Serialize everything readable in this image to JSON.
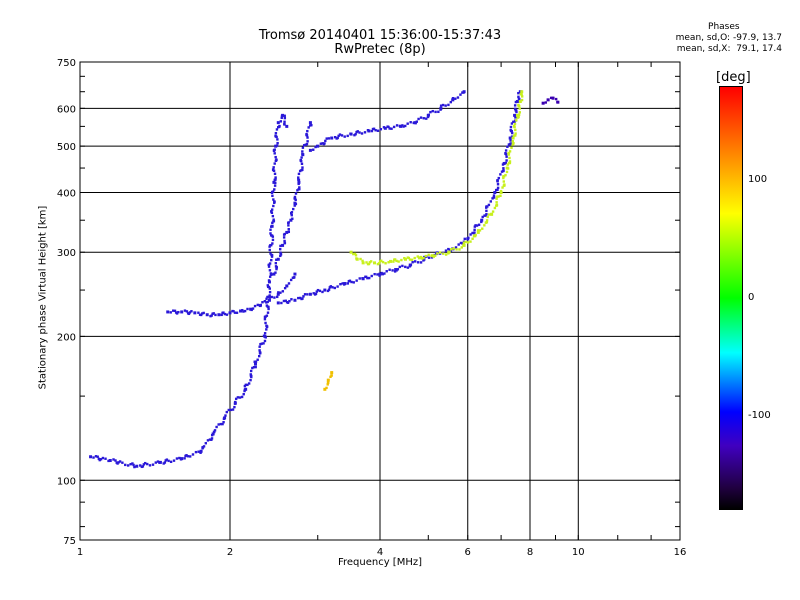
{
  "title_line1": "Tromsø 20140401 15:36:00-15:37:43",
  "title_line2": "RwPretec (8p)",
  "phases": {
    "heading": "Phases",
    "line_o": "mean, sd,O: -97.9, 13.7",
    "line_x": "mean, sd,X:  79.1, 17.4"
  },
  "colorbar": {
    "unit": "[deg]",
    "ticks": [
      "100",
      "0",
      "-100"
    ],
    "tick_values": [
      100,
      0,
      -100
    ],
    "range": [
      -180,
      180
    ]
  },
  "colors": {
    "o_trace": "#2a18d8",
    "x_trace": "#c8f01e",
    "grid": "#000000"
  },
  "chart_data": {
    "type": "scatter",
    "xlabel": "Frequency [MHz]",
    "ylabel": "Stationary phase Virtual Height [km]",
    "xscale": "log",
    "yscale": "log",
    "xlim": [
      1,
      16
    ],
    "ylim": [
      75,
      750
    ],
    "xticks": [
      1,
      2,
      4,
      6,
      8,
      10,
      16
    ],
    "xtick_labels": [
      "1",
      "2",
      "4",
      "6",
      "8",
      "10",
      "16"
    ],
    "yticks": [
      75,
      100,
      200,
      300,
      400,
      500,
      600,
      750
    ],
    "ytick_labels": [
      "75",
      "100",
      "200",
      "300",
      "400",
      "500",
      "600",
      "750"
    ],
    "grid": true,
    "series": [
      {
        "phase": -100,
        "color": "#2a18d8",
        "x": [
          1.05,
          1.15,
          1.3,
          1.45,
          1.6,
          1.75,
          1.85,
          1.95,
          2.05,
          2.15,
          2.25,
          2.35,
          2.4,
          2.43,
          2.45,
          2.47,
          2.5,
          2.55,
          2.6
        ],
        "y": [
          112,
          110,
          107,
          109,
          111,
          115,
          125,
          135,
          145,
          155,
          175,
          200,
          260,
          340,
          420,
          500,
          560,
          580,
          550
        ]
      },
      {
        "phase": -100,
        "color": "#2a18d8",
        "x": [
          1.5,
          1.6,
          1.7,
          1.8,
          1.9,
          2.0,
          2.1,
          2.2,
          2.3,
          2.4,
          2.5,
          2.6,
          2.7
        ],
        "y": [
          225,
          225,
          224,
          222,
          222,
          224,
          226,
          228,
          232,
          238,
          245,
          255,
          270
        ]
      },
      {
        "phase": -100,
        "color": "#2a18d8",
        "x": [
          2.45,
          2.5,
          2.55,
          2.6,
          2.65,
          2.7,
          2.75,
          2.8,
          2.9
        ],
        "y": [
          270,
          290,
          310,
          330,
          350,
          380,
          420,
          480,
          560
        ]
      },
      {
        "phase": -100,
        "color": "#2a18d8",
        "x": [
          2.5,
          2.7,
          2.9,
          3.1,
          3.4,
          3.7,
          4.0,
          4.3,
          4.6,
          4.9,
          5.2,
          5.6,
          6.0,
          6.4,
          6.8,
          7.1,
          7.3,
          7.45,
          7.55,
          7.65
        ],
        "y": [
          235,
          238,
          245,
          250,
          258,
          264,
          270,
          276,
          282,
          290,
          298,
          305,
          320,
          350,
          400,
          460,
          520,
          580,
          620,
          650
        ]
      },
      {
        "phase": -100,
        "color": "#2a18d8",
        "x": [
          2.9,
          3.0,
          3.2,
          3.5,
          3.8,
          4.1,
          4.4,
          4.7,
          5.0,
          5.3,
          5.6,
          5.9
        ],
        "y": [
          490,
          500,
          520,
          530,
          538,
          545,
          550,
          560,
          580,
          600,
          625,
          650
        ]
      },
      {
        "phase": 90,
        "color": "#c8f01e",
        "x": [
          3.5,
          3.6,
          3.7,
          3.9,
          4.2,
          4.5,
          4.8,
          5.1,
          5.5,
          5.9,
          6.3,
          6.7,
          7.0,
          7.2,
          7.4,
          7.55,
          7.65,
          7.7
        ],
        "y": [
          300,
          290,
          285,
          285,
          287,
          290,
          292,
          295,
          300,
          310,
          330,
          360,
          400,
          450,
          520,
          580,
          620,
          650
        ]
      },
      {
        "phase": 60,
        "color": "#f0c000",
        "x": [
          3.1,
          3.15,
          3.2
        ],
        "y": [
          155,
          162,
          168
        ]
      },
      {
        "phase": -100,
        "color": "#3a00b0",
        "x": [
          8.5,
          8.7,
          8.9,
          9.1
        ],
        "y": [
          615,
          625,
          630,
          618
        ]
      }
    ]
  }
}
